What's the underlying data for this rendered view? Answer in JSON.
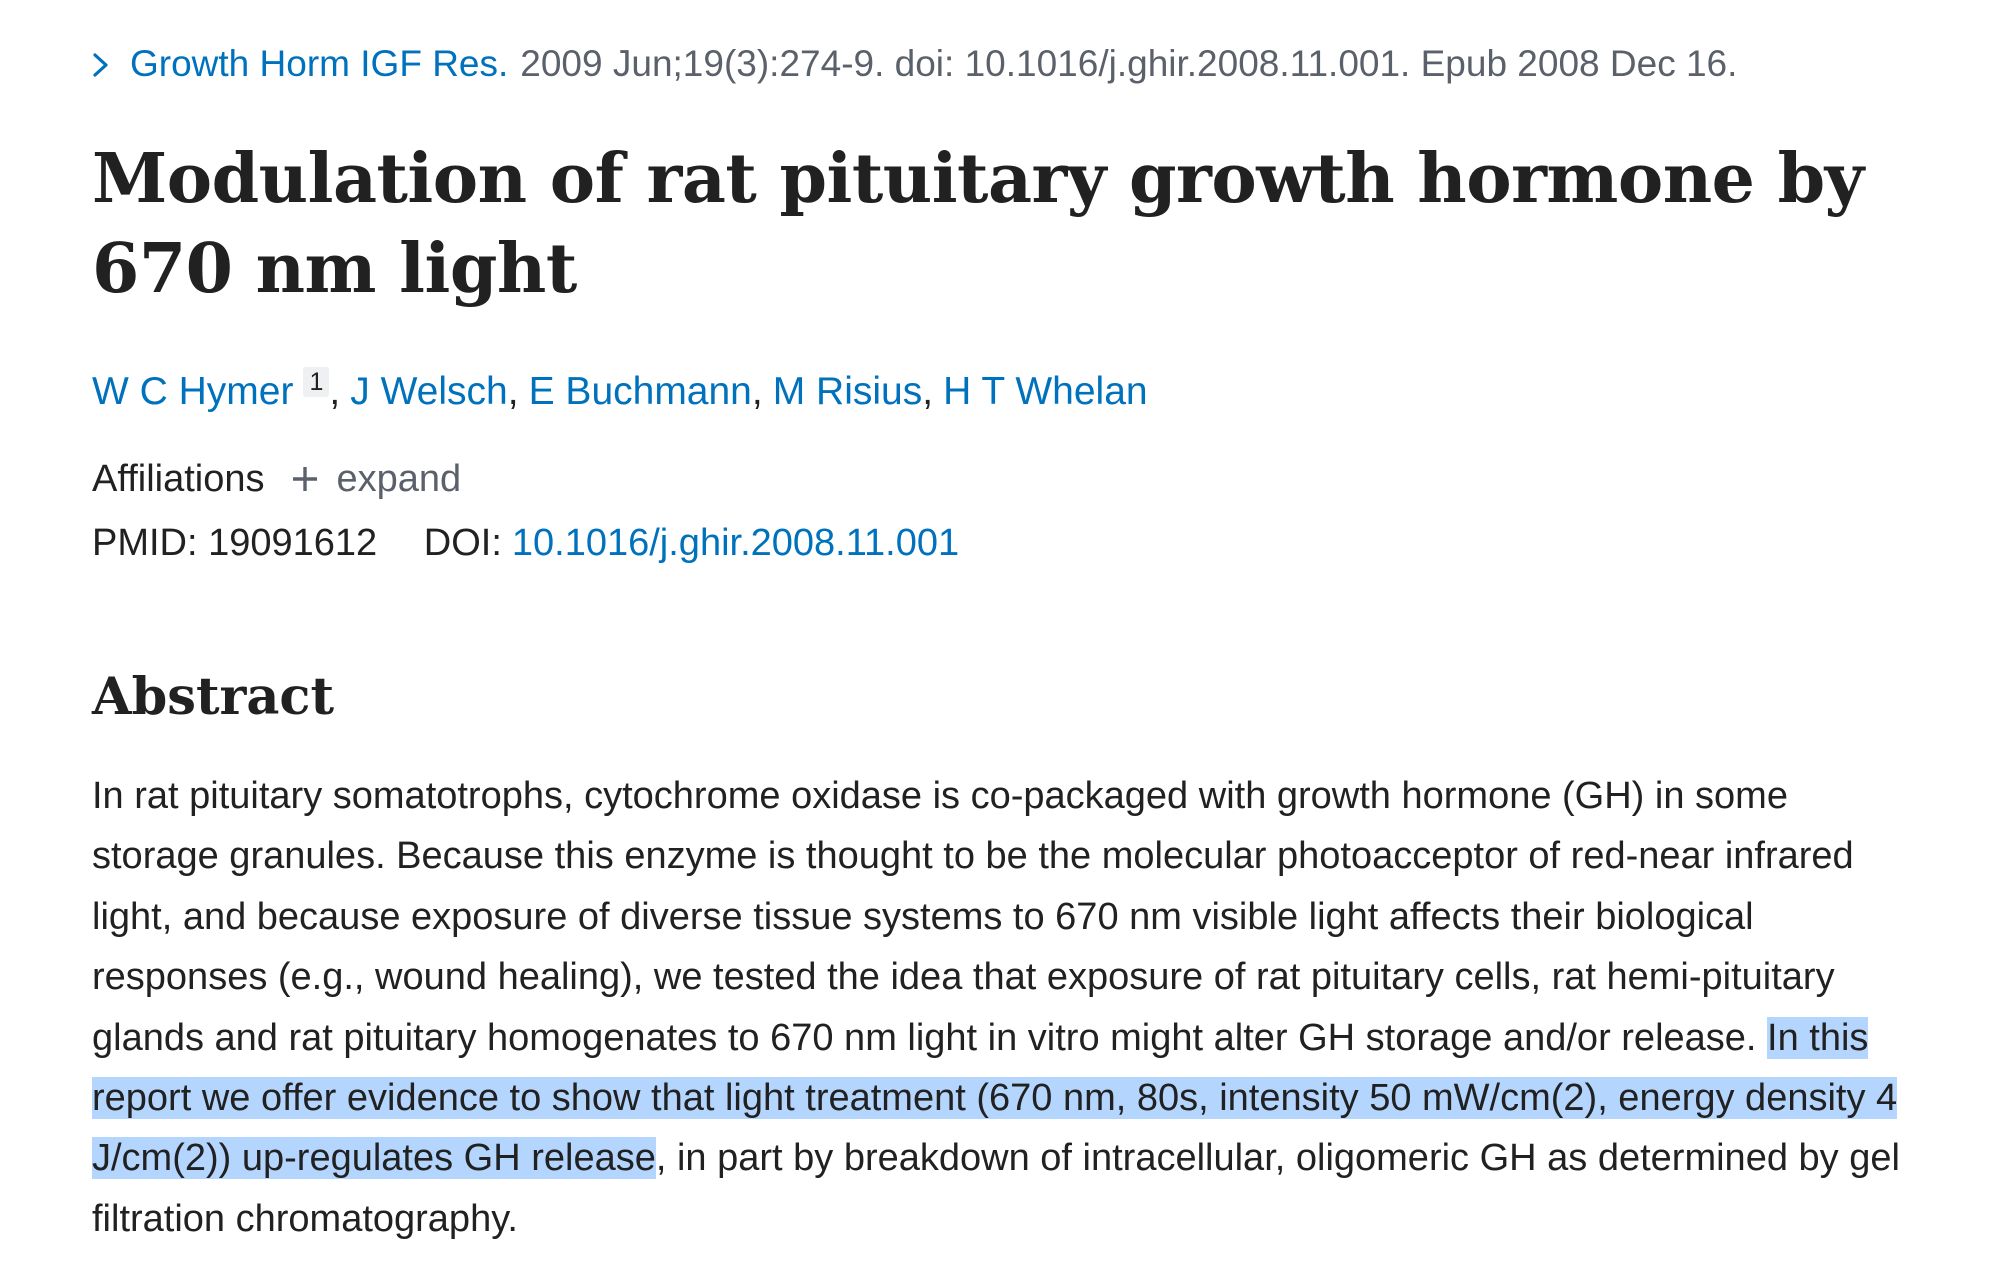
{
  "citation": {
    "journal": "Growth Horm IGF Res.",
    "details": "2009 Jun;19(3):274-9. doi: 10.1016/j.ghir.2008.11.001. Epub 2008 Dec 16."
  },
  "title": "Modulation of rat pituitary growth hormone by 670 nm light",
  "authors": [
    {
      "name": "W C Hymer",
      "sup": "1"
    },
    {
      "name": "J Welsch"
    },
    {
      "name": "E Buchmann"
    },
    {
      "name": "M Risius"
    },
    {
      "name": "H T Whelan"
    }
  ],
  "author_separator": ",",
  "affiliations": {
    "label": "Affiliations",
    "expand_label": "expand"
  },
  "ids": {
    "pmid_label": "PMID:",
    "pmid": "19091612",
    "doi_label": "DOI:",
    "doi": "10.1016/j.ghir.2008.11.001"
  },
  "abstract": {
    "heading": "Abstract",
    "text_before": "In rat pituitary somatotrophs, cytochrome oxidase is co-packaged with growth hormone (GH) in some storage granules. Because this enzyme is thought to be the molecular photoacceptor of red-near infrared light, and because exposure of diverse tissue systems to 670 nm visible light affects their biological responses (e.g., wound healing), we tested the idea that exposure of rat pituitary cells, rat hemi-pituitary glands and rat pituitary homogenates to 670 nm light in vitro might alter GH storage and/or release.",
    "text_highlighted": "In this report we offer evidence to show that light treatment (670 nm, 80s, intensity 50 mW/cm(2), energy density 4 J/cm(2)) up-regulates GH release",
    "text_after": ", in part by breakdown of intracellular, oligomeric GH as determined by gel filtration chromatography.",
    "highlight_color": "#b4d5fe"
  },
  "colors": {
    "link": "#0071bc",
    "text": "#212121",
    "muted": "#5b616b"
  }
}
